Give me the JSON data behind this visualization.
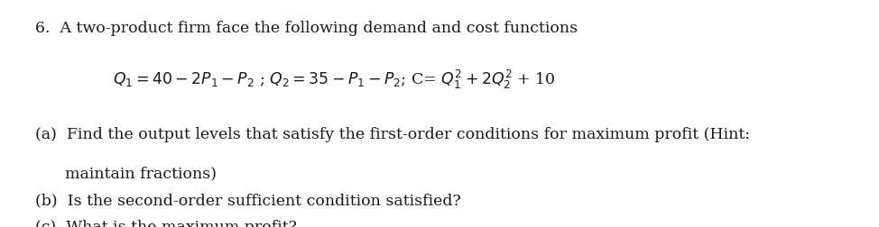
{
  "background_color": "#ffffff",
  "text_color": "#1a1a1a",
  "fig_width": 9.74,
  "fig_height": 2.52,
  "dpi": 100,
  "font_size": 12.5,
  "font_family": "serif",
  "line1_num": "6.",
  "line1_text": "  A two-product firm face the following demand and cost functions",
  "line2": "$Q_1 = 40 - 2P_1 - P_2$ ; $Q_2 = 35 - P_1 - P_2$; C= $Q_1^2 + 2Q_2^2$ + 10",
  "line_a1": "(a)  Find the output levels that satisfy the first-order conditions for maximum profit (Hint:",
  "line_a2": "      maintain fractions)",
  "line_b": "(b)  Is the second-order sufficient condition satisfied?",
  "line_c": "(c)  What is the maximum profit?"
}
